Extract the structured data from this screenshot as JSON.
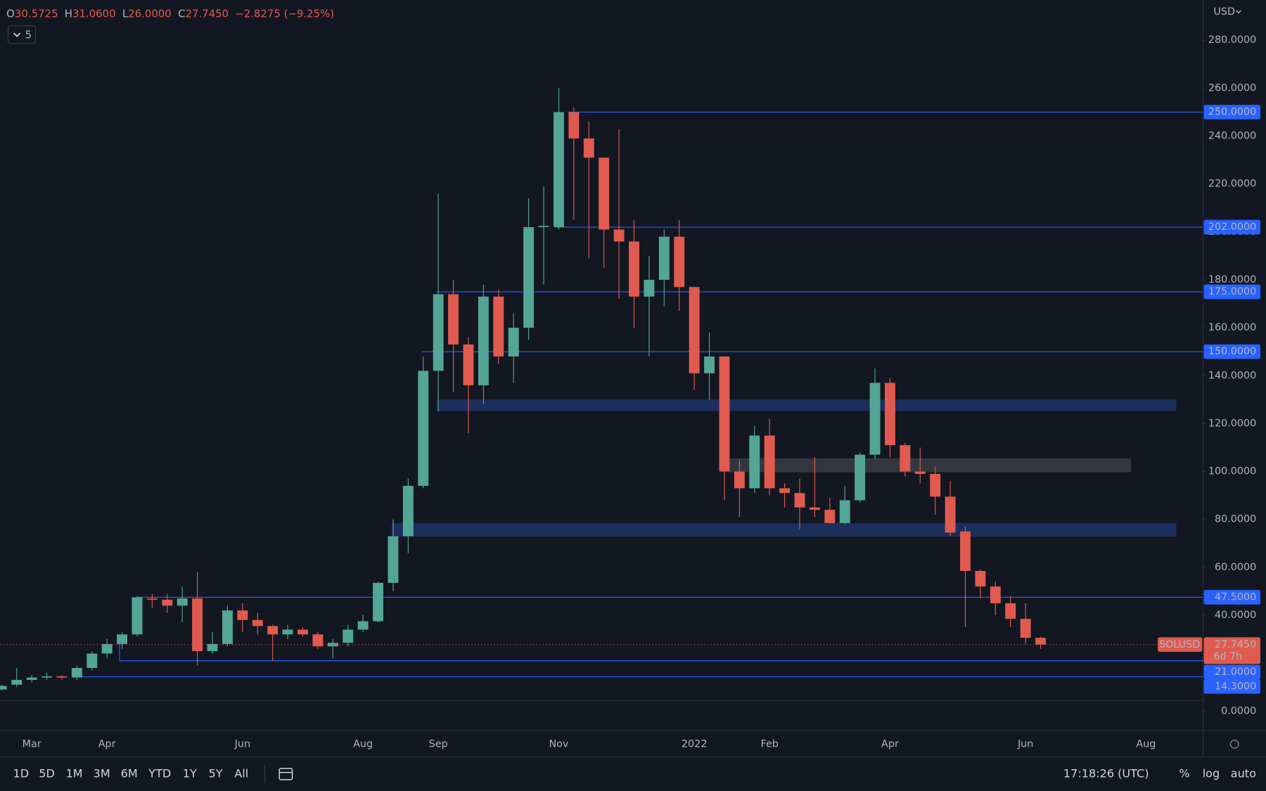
{
  "chart_data": {
    "type": "candlestick",
    "symbol": "SOLUSD",
    "currency": "USD",
    "indicator_count": "5",
    "ohlc_legend": [
      [
        "O",
        "30.5725"
      ],
      [
        "H",
        "31.0600"
      ],
      [
        "L",
        "26.0000"
      ],
      [
        "C",
        "27.7450"
      ]
    ],
    "change": "−2.8275 (−9.25%)",
    "last_price_label": "27.7450",
    "countdown": "6d 7h",
    "up_color": "#53a596",
    "down_color": "#e05a4f",
    "categories": [
      null,
      null,
      "Mar",
      null,
      null,
      null,
      null,
      "Apr",
      null,
      null,
      null,
      null,
      null,
      null,
      null,
      null,
      "Jun",
      null,
      null,
      null,
      null,
      null,
      null,
      null,
      "Aug",
      null,
      null,
      null,
      null,
      "Sep",
      null,
      null,
      null,
      null,
      null,
      null,
      null,
      "Nov",
      null,
      null,
      null,
      null,
      null,
      null,
      null,
      null,
      "2022",
      null,
      null,
      null,
      null,
      "Feb",
      null,
      null,
      null,
      null,
      null,
      null,
      null,
      "Apr",
      null,
      null,
      null,
      null,
      null,
      null,
      null,
      null,
      "Jun",
      null,
      null,
      null,
      null,
      null,
      null,
      null,
      "Aug",
      null,
      null,
      null
    ],
    "open": [
      9,
      11,
      13,
      14,
      14.5,
      14,
      18,
      24,
      28,
      32,
      47,
      46.5,
      44,
      47,
      25,
      28,
      42,
      38,
      35.5,
      32,
      34,
      32,
      27,
      28.5,
      34,
      37.5,
      53.5,
      73,
      94,
      142,
      174,
      153,
      136,
      173,
      148,
      160,
      202,
      202,
      250,
      239,
      231,
      201,
      196,
      173,
      180,
      198,
      177,
      141,
      148,
      100,
      93,
      115,
      93,
      91,
      85,
      84,
      78.5,
      88,
      107,
      137,
      111,
      100,
      99,
      89.5,
      75,
      58.5,
      52,
      45,
      38.5,
      30.5725,
      null,
      null,
      null,
      null,
      null,
      null,
      null,
      null,
      null,
      null
    ],
    "high": [
      11,
      18,
      15,
      16,
      15,
      19,
      25,
      30,
      33,
      48,
      49,
      49,
      52,
      58,
      33,
      44,
      45,
      41,
      36,
      36,
      35,
      33,
      30,
      36,
      40,
      54,
      80,
      97,
      148,
      216,
      180,
      156,
      178,
      176,
      166,
      214,
      219,
      260,
      252,
      246,
      231,
      243,
      205,
      190,
      201,
      205,
      177,
      158,
      148,
      105,
      119,
      122,
      95,
      97,
      106,
      89,
      94,
      108,
      143,
      139,
      112,
      110,
      102,
      96,
      77,
      59,
      54,
      48,
      45,
      31.06,
      null,
      null,
      null,
      null,
      null,
      null,
      null,
      null,
      null,
      null
    ],
    "low": [
      8.5,
      10,
      12,
      13,
      13,
      13,
      17,
      22,
      26,
      31,
      43,
      41,
      37,
      19,
      24,
      27,
      33,
      32,
      21,
      30,
      31,
      26,
      22,
      27,
      33,
      37,
      50,
      66,
      93,
      125,
      133,
      116,
      128,
      145,
      137,
      155,
      178,
      201,
      205,
      189,
      185,
      172,
      160,
      148,
      169,
      167,
      134,
      130,
      88,
      81,
      91,
      90,
      85,
      76,
      81,
      78,
      78,
      87,
      105,
      106,
      98,
      95,
      82,
      73,
      35,
      47,
      40,
      35,
      28,
      26,
      null,
      null,
      null,
      null,
      null,
      null,
      null,
      null,
      null,
      null
    ],
    "close": [
      10.5,
      13,
      14,
      14.5,
      14,
      18,
      24,
      28,
      32,
      47.5,
      46.5,
      44,
      47,
      25,
      28,
      42,
      38,
      35.5,
      32,
      34,
      32,
      27,
      28.5,
      34,
      37.5,
      53.5,
      73,
      94,
      142,
      174,
      153,
      136,
      173,
      148,
      160,
      202,
      202.5,
      250,
      239,
      231,
      201,
      196,
      173,
      180,
      198,
      177,
      141,
      148,
      100,
      93,
      115,
      93,
      91,
      85,
      84,
      78.5,
      88,
      107,
      137,
      111,
      100,
      99,
      89.5,
      74.5,
      58.5,
      52,
      45,
      38.5,
      30.57,
      27.745,
      null,
      null,
      null,
      null,
      null,
      null,
      null,
      null,
      null,
      null
    ],
    "ylim": [
      -8.1,
      296.8
    ],
    "yticks": [
      {
        "value": 0,
        "label": "0.0000"
      },
      {
        "value": 40,
        "label": "40.0000"
      },
      {
        "value": 60,
        "label": "60.0000"
      },
      {
        "value": 80,
        "label": "80.0000"
      },
      {
        "value": 100,
        "label": "100.0000"
      },
      {
        "value": 120,
        "label": "120.0000"
      },
      {
        "value": 140,
        "label": "140.0000"
      },
      {
        "value": 160,
        "label": "160.0000"
      },
      {
        "value": 180,
        "label": "180.0000"
      },
      {
        "value": 200,
        "label": "200.0000"
      },
      {
        "value": 220,
        "label": "220.0000"
      },
      {
        "value": 240,
        "label": "240.0000"
      },
      {
        "value": 260,
        "label": "260.0000"
      },
      {
        "value": 280,
        "label": "280.0000"
      }
    ],
    "grid": false,
    "levels": [
      {
        "value": 250,
        "label": "250.0000"
      },
      {
        "value": 202,
        "label": "202.0000"
      },
      {
        "value": 175,
        "label": "175.0000"
      },
      {
        "value": 150,
        "label": "150.0000"
      },
      {
        "value": 47.5,
        "label": "47.5000"
      },
      {
        "value": 21,
        "label": "21.0000"
      },
      {
        "value": 14.3,
        "label": "14.3000"
      }
    ],
    "zones": [
      {
        "low": 125.3,
        "high": 130,
        "color": "#1e3366"
      },
      {
        "low": 72.8,
        "high": 78.5,
        "color": "#1e3366"
      },
      {
        "low": 99.7,
        "high": 105.5,
        "color": "#3a3c44"
      }
    ],
    "toolbar": {
      "ranges": [
        "1D",
        "5D",
        "1M",
        "3M",
        "6M",
        "YTD",
        "1Y",
        "5Y",
        "All"
      ],
      "time": "17:18:26 (UTC)",
      "buttons": [
        "%",
        "log",
        "auto"
      ]
    }
  }
}
